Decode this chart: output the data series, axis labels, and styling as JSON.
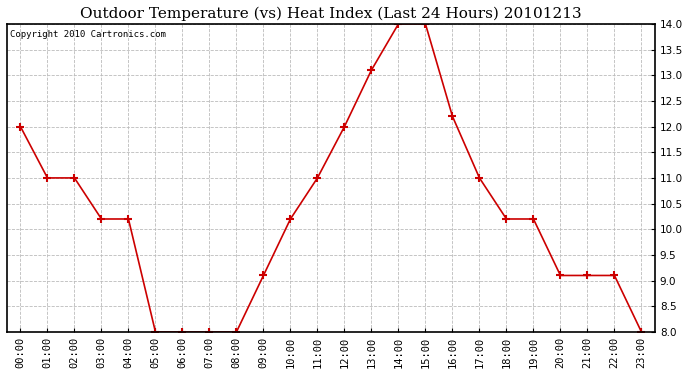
{
  "title": "Outdoor Temperature (vs) Heat Index (Last 24 Hours) 20101213",
  "copyright": "Copyright 2010 Cartronics.com",
  "hours": [
    "00:00",
    "01:00",
    "02:00",
    "03:00",
    "04:00",
    "05:00",
    "06:00",
    "07:00",
    "08:00",
    "09:00",
    "10:00",
    "11:00",
    "12:00",
    "13:00",
    "14:00",
    "15:00",
    "16:00",
    "17:00",
    "18:00",
    "19:00",
    "20:00",
    "21:00",
    "22:00",
    "23:00"
  ],
  "values": [
    12.0,
    11.0,
    11.0,
    10.2,
    10.2,
    8.0,
    8.0,
    8.0,
    8.0,
    9.1,
    10.2,
    11.0,
    12.0,
    13.1,
    14.0,
    14.0,
    12.2,
    11.0,
    10.2,
    10.2,
    9.1,
    9.1,
    9.1,
    8.0
  ],
  "ylim": [
    8.0,
    14.0
  ],
  "yticks": [
    8.0,
    8.5,
    9.0,
    9.5,
    10.0,
    10.5,
    11.0,
    11.5,
    12.0,
    12.5,
    13.0,
    13.5,
    14.0
  ],
  "line_color": "#cc0000",
  "marker": "+",
  "marker_size": 6,
  "marker_linewidth": 1.5,
  "grid_color": "#bbbbbb",
  "bg_color": "#ffffff",
  "plot_bg_color": "#ffffff",
  "title_fontsize": 11,
  "copyright_fontsize": 6.5,
  "tick_fontsize": 7.5,
  "line_width": 1.2
}
